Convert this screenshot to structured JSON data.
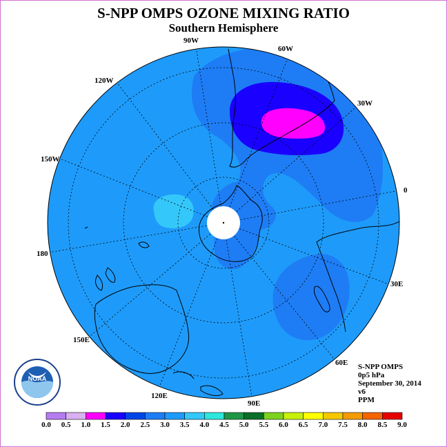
{
  "title": "S-NPP OMPS OZONE MIXING RATIO",
  "subtitle": "Southern Hemisphere",
  "longitude_labels": {
    "w90": "90W",
    "w60": "60W",
    "w30": "30W",
    "w120": "120W",
    "w150": "150W",
    "zero": "0",
    "e180": "180",
    "e30": "30E",
    "e150": "150E",
    "e60": "60E",
    "e120": "120E",
    "e90": "90E"
  },
  "info": {
    "instrument": "S-NPP OMPS",
    "level": "0p5 hPa",
    "date": "September 30, 2014",
    "version": "v6",
    "units": "PPM"
  },
  "logo": {
    "text": "NOAA",
    "icon": "noaa-logo"
  },
  "colorbar": {
    "ticks": [
      "0.0",
      "0.5",
      "1.0",
      "1.5",
      "2.0",
      "2.5",
      "3.0",
      "3.5",
      "4.0",
      "4.5",
      "5.0",
      "5.5",
      "6.0",
      "6.5",
      "7.0",
      "7.5",
      "8.0",
      "8.5",
      "9.0"
    ],
    "colors": [
      "#b57cf0",
      "#d9b0f0",
      "#ff00ff",
      "#1a00ff",
      "#0045e6",
      "#1e7df5",
      "#1e9bfa",
      "#34c8fa",
      "#2de6dc",
      "#1e9646",
      "#0a6e28",
      "#7dd21e",
      "#c8f00a",
      "#ffff00",
      "#f5c800",
      "#f59b00",
      "#f56400",
      "#e60000",
      "#8c4b3c"
    ]
  },
  "map_colors": {
    "background_field": "#1e9bfa",
    "enhanced_field": "#1e7df5",
    "low_region": "#1a00ff",
    "lowest_region": "#ff00ff",
    "high_region": "#34c8fa",
    "polar_gap": "#ffffff"
  }
}
